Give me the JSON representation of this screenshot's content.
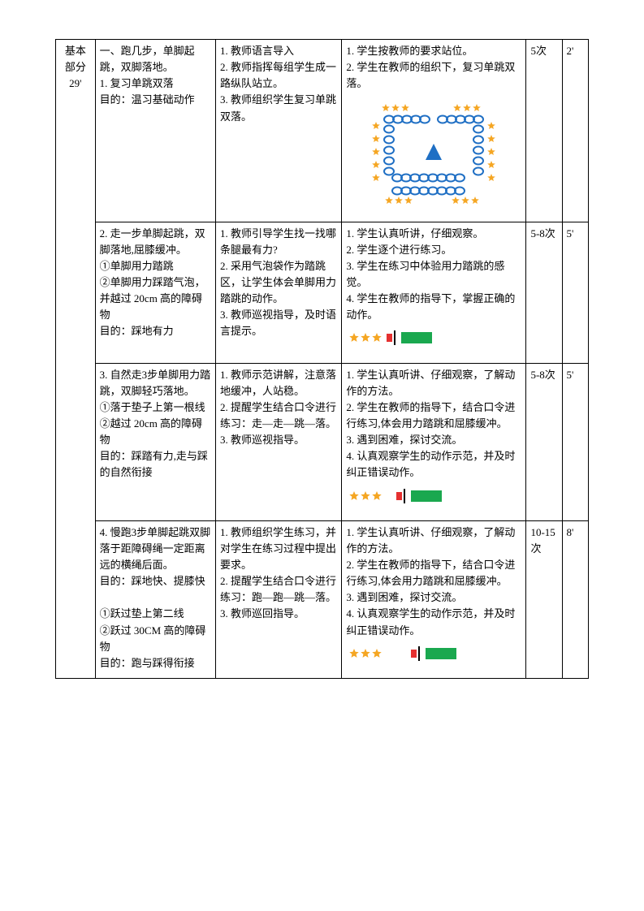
{
  "section": {
    "label_line1": "基本",
    "label_line2": "部分",
    "label_line3": "29'"
  },
  "rows": [
    {
      "col2": "一、跑几步，单脚起跳，双脚落地。\n1. 复习单跳双落\n目的：温习基础动作",
      "col3": "1. 教师语言导入\n2. 教师指挥每组学生成一路纵队站立。\n3. 教师组织学生复习单跳双落。",
      "col4_text": "1. 学生按教师的要求站位。\n2. 学生在教师的组织下，复习单跳双落。",
      "col5": "5次",
      "col6": "2'",
      "diagram": "formation"
    },
    {
      "col2": "2. 走一步单脚起跳，双脚落地,屈膝缓冲。\n①单脚用力踏跳\n②单脚用力踩踏气泡，并越过 20cm 高的障碍物\n目的：踩地有力",
      "col3": "1. 教师引导学生找一找哪条腿最有力?\n2. 采用气泡袋作为踏跳区，让学生体会单脚用力踏跳的动作。\n3. 教师巡视指导，及时语言提示。",
      "col4_text": "1. 学生认真听讲，仔细观察。\n2. 学生逐个进行练习。\n3. 学生在练习中体验用力踏跳的感觉。\n4. 学生在教师的指导下，掌握正确的动作。",
      "col5": "5-8次",
      "col6": "5'",
      "diagram": "track_short"
    },
    {
      "col2": "3. 自然走3步单脚用力踏跳，双脚轻巧落地。\n①落于垫子上第一根线\n②越过 20cm 高的障碍物\n目的：踩踏有力,走与踩的自然衔接",
      "col3": "1. 教师示范讲解，注意落地缓冲，人站稳。\n2. 提醒学生结合口令进行练习：走—走—跳—落。\n3. 教师巡视指导。",
      "col4_text": "1. 学生认真听讲、仔细观察，了解动作的方法。\n2. 学生在教师的指导下，结合口令进行练习,体会用力踏跳和屈膝缓冲。\n3. 遇到困难，探讨交流。\n4. 认真观察学生的动作示范，并及时纠正错误动作。",
      "col5": "5-8次",
      "col6": "5'",
      "diagram": "track_mid"
    },
    {
      "col2": "4. 慢跑3步单脚起跳双脚落于距障碍绳一定距离远的横绳后面。\n目的：踩地快、提膝快\n\n①跃过垫上第二线\n②跃过 30CM 高的障碍物\n目的：跑与踩得衔接",
      "col3": "1. 教师组织学生练习，并对学生在练习过程中提出要求。\n2. 提醒学生结合口令进行练习：跑—跑—跳—落。\n3. 教师巡回指导。",
      "col4_text": "1. 学生认真听讲、仔细观察，了解动作的方法。\n2. 学生在教师的指导下，结合口令进行练习,体会用力踏跳和屈膝缓冲。\n3. 遇到困难，探讨交流。\n4. 认真观察学生的动作示范，并及时纠正错误动作。",
      "col5": "10-15次",
      "col6": "8'",
      "diagram": "track_long"
    }
  ],
  "colors": {
    "blue": "#1f6fc4",
    "orange": "#f5a623",
    "red": "#e53030",
    "green": "#1aa84f",
    "black": "#000000"
  }
}
